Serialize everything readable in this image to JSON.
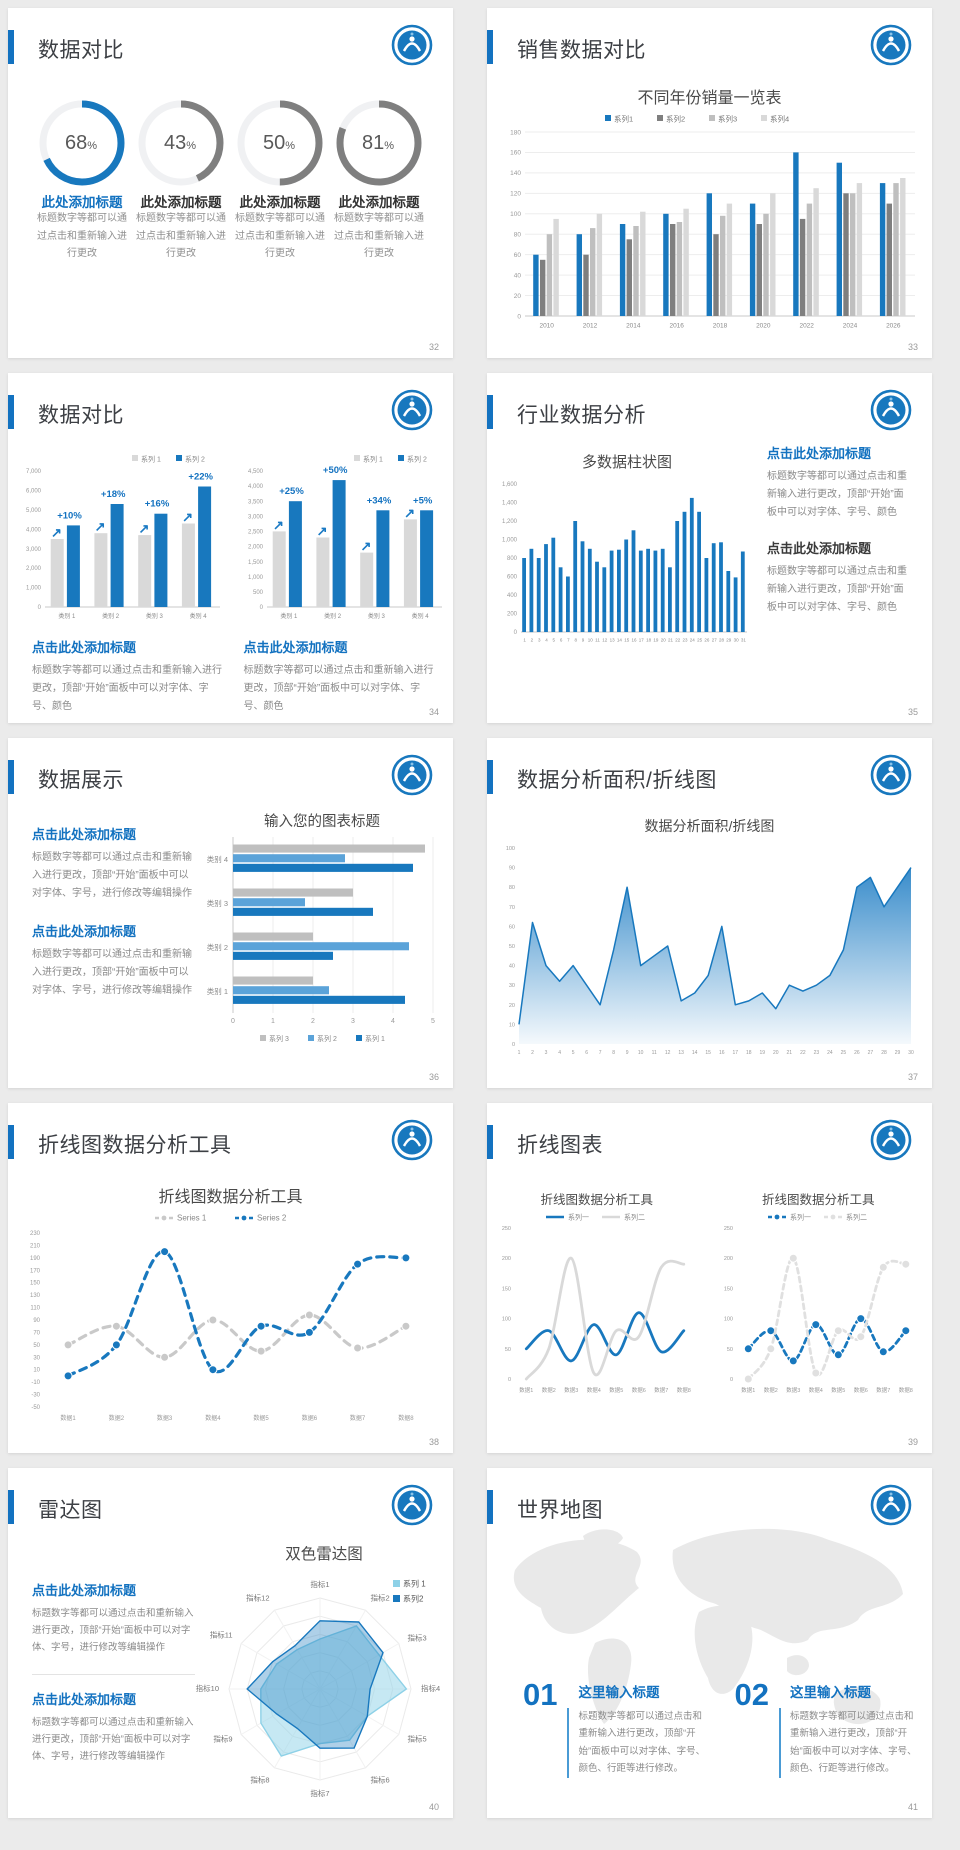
{
  "canvas": {
    "bg": "#ebebeb",
    "card_bg": "#ffffff",
    "accent": "#1372c0"
  },
  "logo_icon": "school-badge-icon",
  "slides": [
    {
      "title": "数据对比",
      "page": "32",
      "chart_data": {
        "type": "donut",
        "items": [
          {
            "value": 68,
            "suffix": "%",
            "color": "#1878be",
            "label": "此处添加标题",
            "label_color": "#1372c0",
            "desc": "标题数字等都可以通过点击和重新输入进行更改"
          },
          {
            "value": 43,
            "suffix": "%",
            "color": "#7f7f7f",
            "label": "此处添加标题",
            "label_color": "#333333",
            "desc": "标题数字等都可以通过点击和重新输入进行更改"
          },
          {
            "value": 50,
            "suffix": "%",
            "color": "#7f7f7f",
            "label": "此处添加标题",
            "label_color": "#333333",
            "desc": "标题数字等都可以通过点击和重新输入进行更改"
          },
          {
            "value": 81,
            "suffix": "%",
            "color": "#7f7f7f",
            "label": "此处添加标题",
            "label_color": "#333333",
            "desc": "标题数字等都可以通过点击和重新输入进行更改"
          }
        ]
      }
    },
    {
      "title": "销售数据对比",
      "page": "33",
      "chart_data": {
        "type": "bar",
        "title": "不同年份销量一览表",
        "categories": [
          "2010",
          "2012",
          "2014",
          "2016",
          "2018",
          "2020",
          "2022",
          "2024",
          "2026"
        ],
        "series": [
          {
            "name": "系列1",
            "color": "#1878be",
            "values": [
              60,
              80,
              90,
              100,
              120,
              110,
              160,
              150,
              130
            ]
          },
          {
            "name": "系列2",
            "color": "#7f7f7f",
            "values": [
              55,
              60,
              75,
              90,
              80,
              90,
              95,
              120,
              110
            ]
          },
          {
            "name": "系列3",
            "color": "#bfbfbf",
            "values": [
              80,
              86,
              88,
              92,
              98,
              100,
              110,
              120,
              130
            ]
          },
          {
            "name": "系列4",
            "color": "#d9d9d9",
            "values": [
              95,
              100,
              102,
              105,
              110,
              120,
              125,
              130,
              135
            ]
          }
        ],
        "ylim": [
          0,
          180
        ],
        "ystep": 20,
        "legend_pos": "top",
        "grid": true
      }
    },
    {
      "title": "数据对比",
      "page": "34",
      "charts": [
        {
          "type": "bar",
          "categories": [
            "类别 1",
            "类别 2",
            "类别 3",
            "类别 4"
          ],
          "series": [
            {
              "name": "系列 1",
              "color": "#d9d9d9",
              "values": [
                3500,
                3800,
                3700,
                4300
              ]
            },
            {
              "name": "系列 2",
              "color": "#1878be",
              "values": [
                4200,
                5300,
                4800,
                6200
              ]
            }
          ],
          "labels": [
            "+10%",
            "+18%",
            "+16%",
            "+22%"
          ],
          "ylim": [
            0,
            7000
          ],
          "ystep": 1000,
          "yfmt": "comma",
          "legend_pos": "topright"
        },
        {
          "type": "bar",
          "categories": [
            "类别 1",
            "类别 2",
            "类别 3",
            "类别 4"
          ],
          "series": [
            {
              "name": "系列 1",
              "color": "#d9d9d9",
              "values": [
                2500,
                2300,
                1800,
                2900
              ]
            },
            {
              "name": "系列 2",
              "color": "#1878be",
              "values": [
                3500,
                4200,
                3200,
                3200
              ]
            }
          ],
          "labels": [
            "+25%",
            "+50%",
            "+34%",
            "+5%"
          ],
          "ylim": [
            0,
            4500
          ],
          "ystep": 500,
          "yfmt": "comma",
          "legend_pos": "topright"
        }
      ],
      "items": [
        {
          "title": "点击此处添加标题",
          "desc": "标题数字等都可以通过点击和重新输入进行更改，顶部“开始”面板中可以对字体、字号、颜色"
        },
        {
          "title": "点击此处添加标题",
          "desc": "标题数字等都可以通过点击和重新输入进行更改，顶部“开始”面板中可以对字体、字号、颜色"
        }
      ]
    },
    {
      "title": "行业数据分析",
      "page": "35",
      "chart_data": {
        "type": "bar",
        "title": "多数据柱状图",
        "categories": [
          "1",
          "2",
          "3",
          "4",
          "5",
          "6",
          "7",
          "8",
          "9",
          "10",
          "11",
          "12",
          "13",
          "14",
          "15",
          "16",
          "17",
          "18",
          "19",
          "20",
          "21",
          "22",
          "23",
          "24",
          "25",
          "26",
          "27",
          "28",
          "29",
          "30",
          "31"
        ],
        "series": [
          {
            "name": "系列1",
            "color": "#1878be",
            "values": [
              800,
              900,
              800,
              950,
              1020,
              700,
              600,
              1200,
              980,
              900,
              760,
              700,
              880,
              890,
              1000,
              1100,
              880,
              900,
              880,
              900,
              700,
              1200,
              1300,
              1450,
              1300,
              800,
              960,
              970,
              660,
              590,
              870
            ]
          }
        ],
        "ylim": [
          0,
          1600
        ],
        "ystep": 200,
        "yfmt": "comma",
        "legend_pos": "none"
      },
      "items": [
        {
          "title": "点击此处添加标题",
          "desc": "标题数字等都可以通过点击和重新输入进行更改，顶部“开始”面板中可以对字体、字号、颜色"
        },
        {
          "title": "点击此处添加标题",
          "desc": "标题数字等都可以通过点击和重新输入进行更改，顶部“开始”面板中可以对字体、字号、颜色"
        }
      ]
    },
    {
      "title": "数据展示",
      "page": "36",
      "chart_data": {
        "type": "hbar",
        "title": "输入您的图表标题",
        "categories": [
          "类别 4",
          "类别 3",
          "类别 2",
          "类别 1"
        ],
        "series": [
          {
            "name": "系列 3",
            "color": "#bfbfbf",
            "values": [
              4.8,
              3.0,
              2.0,
              2.0
            ]
          },
          {
            "name": "系列 2",
            "color": "#5ba3d9",
            "values": [
              2.8,
              1.8,
              4.4,
              2.4
            ]
          },
          {
            "name": "系列 1",
            "color": "#1878be",
            "values": [
              4.5,
              3.5,
              2.5,
              4.3
            ]
          }
        ],
        "xlim": [
          0,
          5
        ],
        "xstep": 1,
        "legend_pos": "bottom"
      },
      "items": [
        {
          "title": "点击此处添加标题",
          "desc": "标题数字等都可以通过点击和重新输入进行更改，顶部“开始”面板中可以对字体、字号，进行修改等编辑操作"
        },
        {
          "title": "点击此处添加标题",
          "desc": "标题数字等都可以通过点击和重新输入进行更改，顶部“开始”面板中可以对字体、字号，进行修改等编辑操作"
        }
      ]
    },
    {
      "title": "数据分析面积/折线图",
      "page": "37",
      "chart_data": {
        "type": "area",
        "title": "数据分析面积/折线图",
        "x": [
          "1",
          "2",
          "3",
          "4",
          "5",
          "6",
          "7",
          "8",
          "9",
          "10",
          "11",
          "12",
          "13",
          "14",
          "15",
          "16",
          "17",
          "18",
          "19",
          "20",
          "21",
          "22",
          "23",
          "24",
          "25",
          "26",
          "27",
          "28",
          "29",
          "30"
        ],
        "values": [
          10,
          62,
          40,
          32,
          40,
          30,
          20,
          48,
          80,
          40,
          45,
          50,
          22,
          26,
          35,
          60,
          20,
          22,
          26,
          18,
          30,
          27,
          30,
          35,
          48,
          80,
          85,
          70,
          80,
          90
        ],
        "ylim": [
          0,
          100
        ],
        "ystep": 10,
        "color": "#1878be"
      }
    },
    {
      "title": "折线图数据分析工具",
      "page": "38",
      "chart_data": {
        "type": "line",
        "title": "折线图数据分析工具",
        "categories": [
          "数据1",
          "数据2",
          "数据3",
          "数据4",
          "数据5",
          "数据6",
          "数据7",
          "数据8"
        ],
        "series": [
          {
            "name": "Series 1",
            "color": "#c9c9c9",
            "values": [
              50,
              80,
              30,
              90,
              40,
              98,
              45,
              80
            ]
          },
          {
            "name": "Series 2",
            "color": "#1878be",
            "values": [
              0,
              50,
              200,
              10,
              80,
              70,
              180,
              190
            ]
          }
        ],
        "ylim": [
          -50,
          230
        ],
        "ystep": 20,
        "legend_pos": "top"
      }
    },
    {
      "title": "折线图表",
      "page": "39",
      "charts": [
        {
          "type": "line",
          "title": "折线图数据分析工具",
          "categories": [
            "数据1",
            "数据2",
            "数据3",
            "数据4",
            "数据5",
            "数据6",
            "数据7",
            "数据8"
          ],
          "series": [
            {
              "name": "系列一",
              "color": "#1878be",
              "values": [
                50,
                80,
                30,
                90,
                40,
                110,
                45,
                80
              ]
            },
            {
              "name": "系列二",
              "color": "#d9d9d9",
              "values": [
                0,
                50,
                200,
                10,
                80,
                70,
                185,
                190
              ]
            }
          ],
          "ylim": [
            0,
            250
          ],
          "ystep": 50,
          "legend_pos": "top",
          "line_style": "solid"
        },
        {
          "type": "line",
          "title": "折线图数据分析工具",
          "categories": [
            "数据1",
            "数据2",
            "数据3",
            "数据4",
            "数据5",
            "数据6",
            "数据7",
            "数据8"
          ],
          "series": [
            {
              "name": "系列一",
              "color": "#1878be",
              "values": [
                50,
                80,
                30,
                90,
                40,
                100,
                45,
                80
              ]
            },
            {
              "name": "系列二",
              "color": "#e0e0e0",
              "values": [
                0,
                50,
                200,
                10,
                80,
                70,
                185,
                190
              ]
            }
          ],
          "ylim": [
            0,
            250
          ],
          "ystep": 50,
          "legend_pos": "top",
          "line_style": "dashed"
        }
      ]
    },
    {
      "title": "雷达图",
      "page": "40",
      "chart_data": {
        "type": "radar",
        "title": "双色雷达图",
        "axes": [
          "指标1",
          "指标2",
          "指标3",
          "指标4",
          "指标5",
          "指标6",
          "指标7",
          "指标8",
          "指标9",
          "指标10",
          "指标11",
          "指标12"
        ],
        "series": [
          {
            "name": "系列 1",
            "color": "#8ed1e7",
            "fill": "rgba(142,209,231,0.50)",
            "values": [
              55,
              80,
              75,
              95,
              60,
              65,
              60,
              85,
              75,
              65,
              55,
              50
            ]
          },
          {
            "name": "系列2",
            "color": "#1878be",
            "fill": "rgba(24,120,190,0.35)",
            "values": [
              75,
              85,
              80,
              55,
              60,
              75,
              65,
              50,
              55,
              80,
              60,
              55
            ]
          }
        ],
        "legend_pos": "topright"
      },
      "items": [
        {
          "title": "点击此处添加标题",
          "desc": "标题数字等都可以通过点击和重新输入进行更改，顶部“开始”面板中可以对字体、字号，进行修改等编辑操作"
        },
        {
          "title": "点击此处添加标题",
          "desc": "标题数字等都可以通过点击和重新输入进行更改，顶部“开始”面板中可以对字体、字号，进行修改等编辑操作"
        }
      ]
    },
    {
      "title": "世界地图",
      "page": "41",
      "items": [
        {
          "num": "01",
          "title": "这里输入标题",
          "desc": "标题数字等都可以通过点击和重新输入进行更改，顶部“开始”面板中可以对字体、字号、颜色、行距等进行修改。"
        },
        {
          "num": "02",
          "title": "这里输入标题",
          "desc": "标题数字等都可以通过点击和重新输入进行更改，顶部“开始”面板中可以对字体、字号、颜色、行距等进行修改。"
        }
      ]
    }
  ]
}
